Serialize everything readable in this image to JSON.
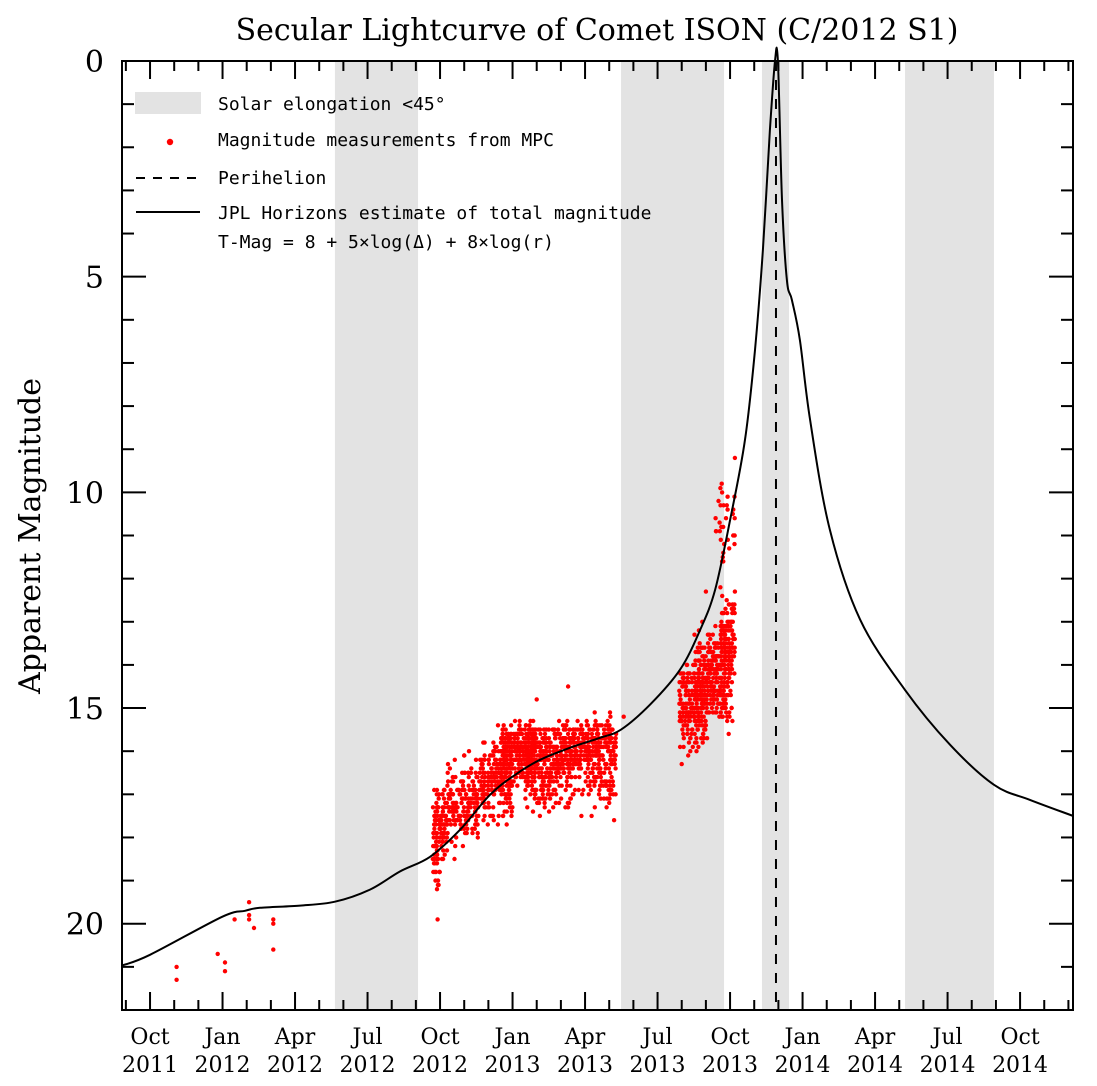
{
  "chart_data": {
    "type": "scatter",
    "title": "Secular Lightcurve of Comet ISON (C/2012 S1)",
    "ylabel": "Apparent Magnitude",
    "xlabel": "",
    "x_unit": "months since 2011-10-01",
    "xlim": [
      -1.16,
      38.19
    ],
    "ylim": [
      22,
      0
    ],
    "y_inverted": true,
    "y_ticks": [
      0,
      5,
      10,
      15,
      20
    ],
    "y_minor_step": 1,
    "x_ticks": [
      {
        "m": 0,
        "month": "Oct",
        "year": "2011"
      },
      {
        "m": 3,
        "month": "Jan",
        "year": "2012"
      },
      {
        "m": 6,
        "month": "Apr",
        "year": "2012"
      },
      {
        "m": 9,
        "month": "Jul",
        "year": "2012"
      },
      {
        "m": 12,
        "month": "Oct",
        "year": "2012"
      },
      {
        "m": 15,
        "month": "Jan",
        "year": "2013"
      },
      {
        "m": 18,
        "month": "Apr",
        "year": "2013"
      },
      {
        "m": 21,
        "month": "Jul",
        "year": "2013"
      },
      {
        "m": 24,
        "month": "Oct",
        "year": "2013"
      },
      {
        "m": 27,
        "month": "Jan",
        "year": "2014"
      },
      {
        "m": 30,
        "month": "Apr",
        "year": "2014"
      },
      {
        "m": 33,
        "month": "Jul",
        "year": "2014"
      },
      {
        "m": 36,
        "month": "Oct",
        "year": "2014"
      }
    ],
    "x_minor_step": 1,
    "grid": false,
    "legend": {
      "placement": "top-left",
      "entries": [
        {
          "kind": "band",
          "label": "Solar elongation <45°"
        },
        {
          "kind": "dot",
          "label": "Magnitude measurements from MPC"
        },
        {
          "kind": "dashed",
          "label": "Perihelion"
        },
        {
          "kind": "line",
          "label": "JPL Horizons estimate of total magnitude",
          "sublabel": "T-Mag = 8  + 5×log(Δ) + 8×log(r)"
        }
      ]
    },
    "colors": {
      "band": "#e3e3e3",
      "dots": "#ff0000",
      "line": "#000000",
      "axis": "#000000"
    },
    "solar_elongation_bands": [
      [
        7.65,
        11.09
      ],
      [
        19.49,
        23.75
      ],
      [
        25.32,
        26.44
      ],
      [
        31.24,
        34.92
      ]
    ],
    "perihelion_m": 25.9,
    "jpl_curve": {
      "name": "JPL Horizons estimate of total magnitude",
      "points": [
        [
          -1.16,
          20.97
        ],
        [
          0,
          20.72
        ],
        [
          2.98,
          19.84
        ],
        [
          3.93,
          19.7
        ],
        [
          4.55,
          19.63
        ],
        [
          6.21,
          19.58
        ],
        [
          7.65,
          19.49
        ],
        [
          9.1,
          19.21
        ],
        [
          10.34,
          18.79
        ],
        [
          11.58,
          18.45
        ],
        [
          12.83,
          17.82
        ],
        [
          14.07,
          17.01
        ],
        [
          15.1,
          16.55
        ],
        [
          16.14,
          16.2
        ],
        [
          17.38,
          15.92
        ],
        [
          18.62,
          15.69
        ],
        [
          19.49,
          15.5
        ],
        [
          20.69,
          14.92
        ],
        [
          21.93,
          14.11
        ],
        [
          22.76,
          13.19
        ],
        [
          23.38,
          12.26
        ],
        [
          24.0,
          10.64
        ],
        [
          24.62,
          8.78
        ],
        [
          25.03,
          6.7
        ],
        [
          25.36,
          4.38
        ],
        [
          25.65,
          1.6
        ],
        [
          25.86,
          0.0
        ],
        [
          25.98,
          0.0
        ],
        [
          26.15,
          3.22
        ],
        [
          26.35,
          5.08
        ],
        [
          26.56,
          5.54
        ],
        [
          26.89,
          6.47
        ],
        [
          27.31,
          8.32
        ],
        [
          28.13,
          10.87
        ],
        [
          29.38,
          12.95
        ],
        [
          31.24,
          14.58
        ],
        [
          33.1,
          15.85
        ],
        [
          34.92,
          16.78
        ],
        [
          36.41,
          17.13
        ],
        [
          38.19,
          17.5
        ]
      ]
    },
    "mpc_measurements": {
      "name": "Magnitude measurements from MPC",
      "individual_points": [
        [
          1.1,
          21.0
        ],
        [
          1.1,
          21.3
        ],
        [
          2.8,
          20.7
        ],
        [
          3.1,
          20.9
        ],
        [
          3.1,
          21.1
        ],
        [
          3.5,
          19.9
        ],
        [
          4.1,
          19.5
        ],
        [
          4.1,
          19.8
        ],
        [
          4.1,
          19.9
        ],
        [
          4.3,
          20.1
        ],
        [
          5.1,
          19.9
        ],
        [
          5.1,
          20.6
        ],
        [
          5.1,
          20.0
        ]
      ],
      "clusters": [
        {
          "m_range": [
            11.7,
            12.3
          ],
          "mag_center": 17.7,
          "mag_spread": 0.7,
          "count": 110
        },
        {
          "m_range": [
            11.7,
            12.0
          ],
          "mag_center": 18.8,
          "mag_spread": 0.5,
          "count": 18
        },
        {
          "m_range": [
            12.3,
            13.6
          ],
          "mag_center": 17.2,
          "mag_spread": 0.8,
          "count": 170
        },
        {
          "m_range": [
            13.6,
            15.0
          ],
          "mag_center": 16.7,
          "mag_spread": 0.8,
          "count": 200
        },
        {
          "m_range": [
            14.5,
            16.0
          ],
          "mag_center": 16.0,
          "mag_spread": 0.6,
          "count": 300
        },
        {
          "m_range": [
            15.5,
            17.5
          ],
          "mag_center": 16.1,
          "mag_spread": 0.7,
          "count": 360
        },
        {
          "m_range": [
            17.5,
            19.3
          ],
          "mag_center": 15.9,
          "mag_spread": 0.6,
          "count": 260
        },
        {
          "m_range": [
            15.5,
            19.3
          ],
          "mag_center": 16.9,
          "mag_spread": 0.5,
          "count": 120
        },
        {
          "m_range": [
            21.9,
            23.0
          ],
          "mag_center": 15.0,
          "mag_spread": 0.9,
          "count": 180
        },
        {
          "m_range": [
            22.5,
            24.1
          ],
          "mag_center": 14.3,
          "mag_spread": 1.0,
          "count": 320
        },
        {
          "m_range": [
            23.6,
            24.2
          ],
          "mag_center": 13.3,
          "mag_spread": 0.7,
          "count": 90
        },
        {
          "m_range": [
            23.4,
            24.2
          ],
          "mag_center": 10.7,
          "mag_spread": 0.8,
          "count": 30
        }
      ],
      "outliers": [
        [
          11.9,
          19.9
        ],
        [
          12.6,
          18.5
        ],
        [
          13.2,
          16.0
        ],
        [
          13.8,
          17.6
        ],
        [
          14.4,
          15.4
        ],
        [
          15.1,
          15.3
        ],
        [
          16.0,
          14.8
        ],
        [
          17.3,
          14.5
        ],
        [
          18.4,
          15.1
        ],
        [
          19.0,
          17.2
        ],
        [
          19.6,
          15.2
        ],
        [
          22.0,
          16.3
        ],
        [
          23.0,
          12.3
        ],
        [
          23.6,
          12.2
        ],
        [
          24.2,
          12.3
        ],
        [
          24.2,
          9.2
        ],
        [
          23.9,
          10.1
        ],
        [
          23.7,
          11.5
        ]
      ]
    }
  }
}
